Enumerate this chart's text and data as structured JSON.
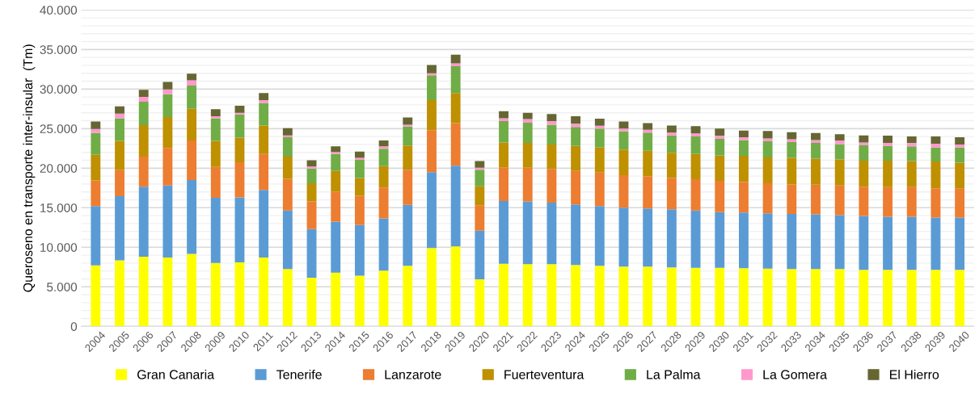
{
  "chart_data": {
    "type": "bar",
    "stacked": true,
    "ylabel": "Queroseno en transporte inter-insular  (Tm)",
    "categories": [
      "2004",
      "2005",
      "2006",
      "2007",
      "2008",
      "2009",
      "2010",
      "2011",
      "2012",
      "2013",
      "2014",
      "2015",
      "2016",
      "2017",
      "2018",
      "2019",
      "2020",
      "2021",
      "2022",
      "2023",
      "2024",
      "2025",
      "2026",
      "2027",
      "2028",
      "2029",
      "2030",
      "2031",
      "2032",
      "2033",
      "2034",
      "2035",
      "2036",
      "2037",
      "2038",
      "2039",
      "2040"
    ],
    "series": [
      {
        "name": "Gran Canaria",
        "color": "#ffff00",
        "values": [
          7700,
          8350,
          8800,
          8700,
          9150,
          8000,
          8100,
          8700,
          7250,
          6150,
          6800,
          6400,
          7050,
          7650,
          9900,
          10100,
          5950,
          7900,
          7850,
          7850,
          7750,
          7650,
          7550,
          7550,
          7450,
          7400,
          7400,
          7350,
          7300,
          7250,
          7250,
          7250,
          7150,
          7150,
          7150,
          7150,
          7150
        ]
      },
      {
        "name": "Tenerife",
        "color": "#5b9bd5",
        "values": [
          7500,
          8100,
          8850,
          9100,
          9350,
          8250,
          8200,
          8550,
          7400,
          6150,
          6450,
          6400,
          6600,
          7700,
          9600,
          10200,
          6150,
          7950,
          7950,
          7800,
          7650,
          7550,
          7450,
          7350,
          7350,
          7250,
          7050,
          7050,
          7000,
          6950,
          6900,
          6800,
          6800,
          6700,
          6700,
          6600,
          6600
        ]
      },
      {
        "name": "Lanzarote",
        "color": "#ed7d31",
        "values": [
          3250,
          3300,
          3800,
          4750,
          5000,
          3900,
          4450,
          4550,
          4000,
          3500,
          3800,
          3700,
          3900,
          4450,
          5300,
          5400,
          3200,
          4250,
          4250,
          4250,
          4250,
          4250,
          4100,
          4050,
          3950,
          3950,
          3950,
          3850,
          3800,
          3750,
          3750,
          3750,
          3700,
          3750,
          3750,
          3700,
          3650
        ]
      },
      {
        "name": "Fuerteventura",
        "color": "#bf9000",
        "values": [
          3250,
          3700,
          4000,
          3900,
          4000,
          3300,
          3100,
          3600,
          2800,
          2300,
          2600,
          2250,
          2700,
          3050,
          3800,
          3800,
          2400,
          3150,
          3150,
          3100,
          3150,
          3150,
          3250,
          3250,
          3200,
          3200,
          3200,
          3300,
          3250,
          3350,
          3300,
          3300,
          3300,
          3350,
          3300,
          3400,
          3300
        ]
      },
      {
        "name": "La Palma",
        "color": "#70ad47",
        "values": [
          2750,
          2850,
          2950,
          2900,
          2950,
          2850,
          2950,
          2850,
          2450,
          1850,
          2150,
          2300,
          2200,
          2400,
          3150,
          3400,
          2100,
          2700,
          2550,
          2500,
          2400,
          2400,
          2300,
          2300,
          2200,
          2200,
          2100,
          2000,
          2050,
          2000,
          2000,
          1950,
          1950,
          1850,
          1850,
          1750,
          1900
        ]
      },
      {
        "name": "La Gomera",
        "color": "#ff99cc",
        "values": [
          500,
          600,
          600,
          600,
          650,
          250,
          200,
          350,
          250,
          250,
          250,
          250,
          300,
          250,
          250,
          350,
          250,
          350,
          450,
          450,
          450,
          350,
          350,
          350,
          350,
          400,
          400,
          350,
          350,
          350,
          350,
          450,
          350,
          400,
          450,
          500,
          400
        ]
      },
      {
        "name": "El Hierro",
        "color": "#666633",
        "values": [
          950,
          900,
          900,
          950,
          850,
          900,
          900,
          900,
          900,
          800,
          700,
          800,
          750,
          900,
          1050,
          1100,
          850,
          900,
          800,
          900,
          900,
          900,
          900,
          850,
          900,
          900,
          900,
          850,
          950,
          900,
          900,
          800,
          900,
          900,
          800,
          900,
          900
        ]
      }
    ],
    "ylim": [
      0,
      40000
    ],
    "yticks": [
      {
        "value": 0,
        "label": "0"
      },
      {
        "value": 1000,
        "label": null
      },
      {
        "value": 2000,
        "label": null
      },
      {
        "value": 3000,
        "label": null
      },
      {
        "value": 4000,
        "label": null
      },
      {
        "value": 5000,
        "label": "5.000"
      },
      {
        "value": 6000,
        "label": null
      },
      {
        "value": 7000,
        "label": null
      },
      {
        "value": 8000,
        "label": null
      },
      {
        "value": 9000,
        "label": null
      },
      {
        "value": 10000,
        "label": "10.000"
      },
      {
        "value": 11000,
        "label": null
      },
      {
        "value": 12000,
        "label": null
      },
      {
        "value": 13000,
        "label": null
      },
      {
        "value": 14000,
        "label": null
      },
      {
        "value": 15000,
        "label": "15.000"
      },
      {
        "value": 16000,
        "label": null
      },
      {
        "value": 17000,
        "label": null
      },
      {
        "value": 18000,
        "label": null
      },
      {
        "value": 19000,
        "label": null
      },
      {
        "value": 20000,
        "label": "20.000"
      },
      {
        "value": 21000,
        "label": null
      },
      {
        "value": 22000,
        "label": null
      },
      {
        "value": 23000,
        "label": null
      },
      {
        "value": 24000,
        "label": null
      },
      {
        "value": 25000,
        "label": "25.000"
      },
      {
        "value": 26000,
        "label": null
      },
      {
        "value": 27000,
        "label": null
      },
      {
        "value": 28000,
        "label": null
      },
      {
        "value": 29000,
        "label": null
      },
      {
        "value": 30000,
        "label": "30.000"
      },
      {
        "value": 31000,
        "label": null
      },
      {
        "value": 32000,
        "label": null
      },
      {
        "value": 33000,
        "label": null
      },
      {
        "value": 34000,
        "label": null
      },
      {
        "value": 35000,
        "label": "35.000"
      },
      {
        "value": 36000,
        "label": null
      },
      {
        "value": 37000,
        "label": null
      },
      {
        "value": 38000,
        "label": null
      },
      {
        "value": 39000,
        "label": null
      },
      {
        "value": 40000,
        "label": "40.000"
      }
    ],
    "grid": "y",
    "legend": "bottom"
  }
}
